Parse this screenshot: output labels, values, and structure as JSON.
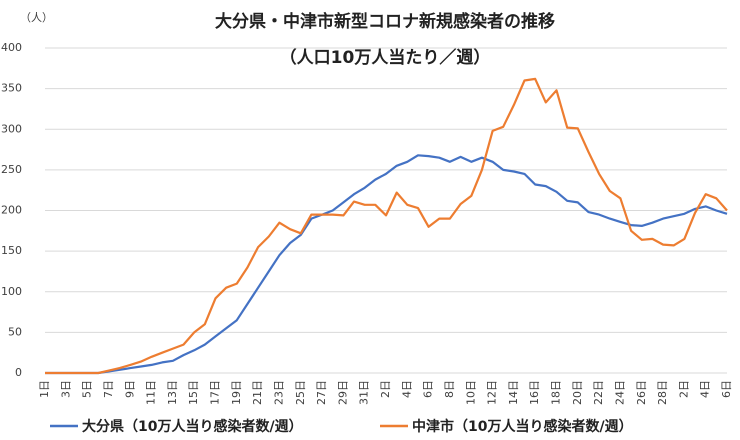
{
  "chart_data": {
    "type": "line",
    "title": "大分県・中津市新型コロナ新規感染者の推移",
    "subtitle": "（人口10万人当たり／週）",
    "y_label": "（人）",
    "categories": [
      "1日",
      null,
      "3日",
      null,
      "5日",
      null,
      "7日",
      null,
      "9日",
      null,
      "11日",
      null,
      "13日",
      null,
      "15日",
      null,
      "17日",
      null,
      "19日",
      null,
      "21日",
      null,
      "23日",
      null,
      "25日",
      null,
      "27日",
      null,
      "29日",
      null,
      "31日",
      null,
      "2日",
      null,
      "4日",
      null,
      "6日",
      null,
      "8日",
      null,
      "10日",
      null,
      "12日",
      null,
      "14日",
      null,
      "16日",
      null,
      "18日",
      null,
      "20日",
      null,
      "22日",
      null,
      "24日",
      null,
      "26日",
      null,
      "28日",
      null,
      "2日",
      null,
      "4日",
      null,
      "6日"
    ],
    "series": [
      {
        "name": "大分県（10万人当り感染者数/週）",
        "color": "#4472c4",
        "values": [
          0,
          0,
          0,
          0,
          0,
          0,
          2,
          4,
          6,
          8,
          10,
          13,
          15,
          22,
          28,
          35,
          45,
          55,
          65,
          85,
          105,
          125,
          145,
          160,
          170,
          190,
          195,
          200,
          210,
          220,
          228,
          238,
          245,
          255,
          260,
          268,
          267,
          265,
          260,
          266,
          260,
          265,
          260,
          250,
          248,
          245,
          232,
          230,
          223,
          212,
          210,
          198,
          195,
          190,
          186,
          182,
          181,
          185,
          190,
          193,
          196,
          202,
          205,
          200,
          196
        ]
      },
      {
        "name": "中津市（10万人当り感染者数/週）",
        "color": "#ed7d31",
        "values": [
          0,
          0,
          0,
          0,
          0,
          0,
          3,
          6,
          10,
          14,
          20,
          25,
          30,
          35,
          50,
          60,
          92,
          105,
          110,
          130,
          155,
          168,
          185,
          177,
          172,
          195,
          195,
          195,
          194,
          211,
          207,
          207,
          194,
          222,
          207,
          203,
          180,
          190,
          190,
          208,
          218,
          250,
          298,
          303,
          330,
          360,
          362,
          333,
          348,
          302,
          301,
          272,
          245,
          224,
          215,
          175,
          164,
          165,
          158,
          157,
          165,
          197,
          220,
          215,
          200
        ]
      }
    ],
    "ylim": [
      0,
      400
    ],
    "yticks": [
      0,
      50,
      100,
      150,
      200,
      250,
      300,
      350,
      400
    ],
    "grid": true
  }
}
